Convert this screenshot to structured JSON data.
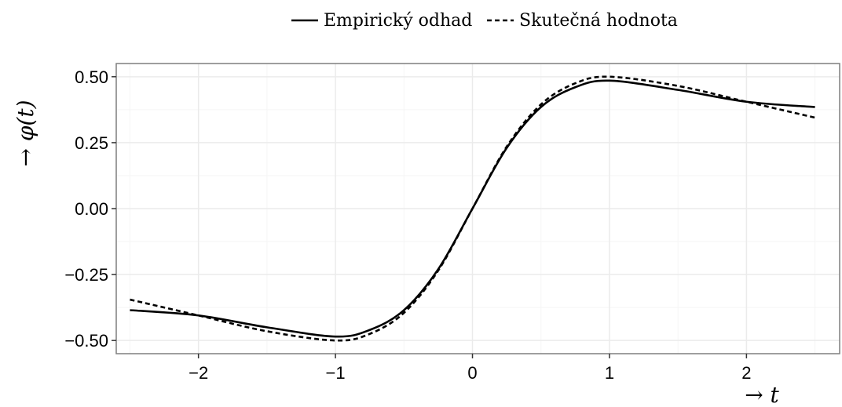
{
  "chart_data": {
    "type": "line",
    "title": "",
    "xlabel": "→ t",
    "ylabel": "→ φ(t)",
    "xlim": [
      -2.6,
      2.68
    ],
    "ylim": [
      -0.55,
      0.55
    ],
    "grid": true,
    "legend_position": "top",
    "x_ticks": [
      -2,
      -1,
      0,
      1,
      2
    ],
    "x_tick_labels": [
      "−2",
      "−1",
      "0",
      "1",
      "2"
    ],
    "y_ticks": [
      0.5,
      0.25,
      0.0,
      -0.25,
      -0.5
    ],
    "y_tick_labels": [
      "0.50",
      "0.25",
      "0.00",
      "−0.25",
      "−0.50"
    ],
    "series": [
      {
        "name": "Empirický odhad",
        "style": "solid",
        "x": [
          -2.5,
          -2.0,
          -1.5,
          -1.0,
          -0.75,
          -0.5,
          -0.25,
          0.0,
          0.25,
          0.5,
          0.75,
          1.0,
          1.5,
          2.0,
          2.5
        ],
        "y": [
          -0.385,
          -0.405,
          -0.45,
          -0.485,
          -0.46,
          -0.385,
          -0.23,
          0.0,
          0.23,
          0.385,
          0.46,
          0.485,
          0.45,
          0.405,
          0.385
        ]
      },
      {
        "name": "Skutečná hodnota",
        "style": "dashed",
        "x": [
          -2.5,
          -2.0,
          -1.5,
          -1.0,
          -0.75,
          -0.5,
          -0.25,
          0.0,
          0.25,
          0.5,
          0.75,
          1.0,
          1.5,
          2.0,
          2.5
        ],
        "y": [
          -0.345,
          -0.405,
          -0.465,
          -0.5,
          -0.475,
          -0.395,
          -0.235,
          0.0,
          0.235,
          0.395,
          0.475,
          0.5,
          0.465,
          0.405,
          0.345
        ]
      }
    ]
  },
  "colors": {
    "line": "#000000",
    "panel_border": "#7f7f7f",
    "grid_major": "#ebebeb",
    "grid_minor": "#f5f5f5",
    "background": "#ffffff"
  }
}
